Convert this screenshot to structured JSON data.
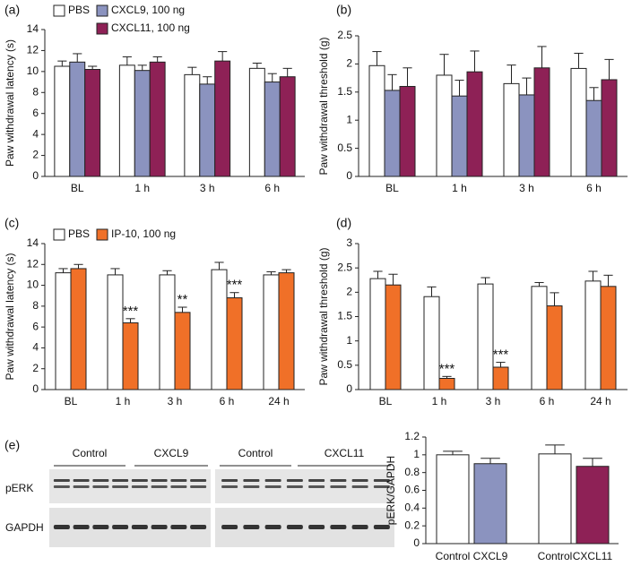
{
  "chart_data": [
    {
      "type": "bar",
      "label": "(a)",
      "y_label": "Paw withdrawal latency (s)",
      "categories": [
        "BL",
        "1 h",
        "3 h",
        "6 h"
      ],
      "ylim": [
        0,
        14
      ],
      "yticks": [
        0,
        2,
        4,
        6,
        8,
        10,
        12,
        14
      ],
      "legend": "top-left",
      "series": [
        {
          "name": "PBS",
          "color": "#ffffff",
          "values": [
            10.5,
            10.6,
            9.7,
            10.3
          ],
          "errors": [
            0.5,
            0.8,
            0.7,
            0.5
          ]
        },
        {
          "name": "CXCL9, 100 ng",
          "color": "#8b93bf",
          "values": [
            10.9,
            10.1,
            8.8,
            9.0
          ],
          "errors": [
            0.8,
            0.5,
            0.7,
            0.8
          ]
        },
        {
          "name": "CXCL11, 100 ng",
          "color": "#8e2156",
          "values": [
            10.2,
            10.9,
            11.0,
            9.5
          ],
          "errors": [
            0.3,
            0.5,
            0.9,
            0.8
          ]
        }
      ]
    },
    {
      "type": "bar",
      "label": "(b)",
      "y_label": "Paw withdrawal threshold (g)",
      "categories": [
        "BL",
        "1 h",
        "3 h",
        "6 h"
      ],
      "ylim": [
        0,
        2.5
      ],
      "yticks": [
        0,
        0.5,
        1,
        1.5,
        2,
        2.5
      ],
      "series": [
        {
          "color": "#ffffff",
          "values": [
            1.97,
            1.8,
            1.65,
            1.92
          ],
          "errors": [
            0.25,
            0.37,
            0.33,
            0.27
          ]
        },
        {
          "color": "#8b93bf",
          "values": [
            1.53,
            1.43,
            1.45,
            1.35
          ],
          "errors": [
            0.28,
            0.28,
            0.3,
            0.23
          ]
        },
        {
          "color": "#8e2156",
          "values": [
            1.6,
            1.86,
            1.93,
            1.72
          ],
          "errors": [
            0.33,
            0.37,
            0.38,
            0.36
          ]
        }
      ]
    },
    {
      "type": "bar",
      "label": "(c)",
      "y_label": "Paw withdrawal latency (s)",
      "categories": [
        "BL",
        "1 h",
        "3 h",
        "6 h",
        "24 h"
      ],
      "ylim": [
        0,
        14
      ],
      "yticks": [
        0,
        2,
        4,
        6,
        8,
        10,
        12,
        14
      ],
      "legend": "top-left",
      "series": [
        {
          "name": "PBS",
          "color": "#ffffff",
          "values": [
            11.2,
            11.0,
            11.0,
            11.5,
            11.0
          ],
          "errors": [
            0.4,
            0.6,
            0.4,
            0.7,
            0.3
          ]
        },
        {
          "name": "IP-10, 100 ng",
          "color": "#f07028",
          "values": [
            11.6,
            6.4,
            7.4,
            8.8,
            11.2
          ],
          "errors": [
            0.4,
            0.4,
            0.5,
            0.5,
            0.3
          ],
          "significance": [
            null,
            "***",
            "**",
            "***",
            null
          ]
        }
      ]
    },
    {
      "type": "bar",
      "label": "(d)",
      "y_label": "Paw withdrawal threshold (g)",
      "categories": [
        "BL",
        "1 h",
        "3 h",
        "6 h",
        "24 h"
      ],
      "ylim": [
        0,
        3
      ],
      "yticks": [
        0,
        0.5,
        1,
        1.5,
        2,
        2.5,
        3
      ],
      "series": [
        {
          "color": "#ffffff",
          "values": [
            2.28,
            1.91,
            2.17,
            2.12,
            2.23
          ],
          "errors": [
            0.15,
            0.2,
            0.13,
            0.08,
            0.2
          ]
        },
        {
          "color": "#f07028",
          "values": [
            2.15,
            0.23,
            0.46,
            1.72,
            2.12
          ],
          "errors": [
            0.22,
            0.04,
            0.1,
            0.27,
            0.23
          ],
          "significance": [
            null,
            "***",
            "***",
            null,
            null
          ]
        }
      ]
    },
    {
      "type": "bar",
      "y_label": "pERK/GAPDH",
      "categories": [
        "Control",
        "CXCL9",
        "Control",
        "CXCL11"
      ],
      "ylim": [
        0,
        1.2
      ],
      "yticks": [
        0,
        0.2,
        0.4,
        0.6,
        0.8,
        1,
        1.2
      ],
      "series": [
        {
          "colors": [
            "#ffffff",
            "#8b93bf",
            "#ffffff",
            "#8e2156"
          ],
          "values": [
            1.0,
            0.9,
            1.01,
            0.87
          ],
          "errors": [
            0.04,
            0.06,
            0.1,
            0.09
          ]
        }
      ]
    }
  ],
  "blot": {
    "label": "(e)",
    "groups": [
      "Control",
      "CXCL9",
      "Control",
      "CXCL11"
    ],
    "rows": [
      "pERK",
      "GAPDH"
    ]
  }
}
